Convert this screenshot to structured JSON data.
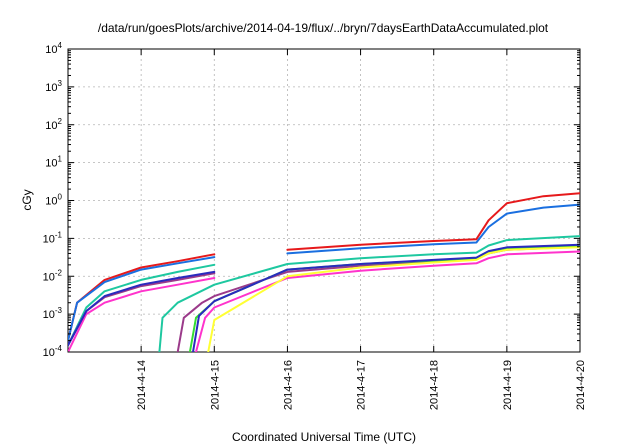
{
  "chart_data": {
    "type": "line",
    "title": "/data/run/goesPlots/archive/2014-04-19/flux/../bryn/7daysEarthDataAccumulated.plot",
    "xlabel": "Coordinated Universal Time (UTC)",
    "ylabel": "cGy",
    "x_unit": "day",
    "xlim": [
      "2014-04-13",
      "2014-04-20"
    ],
    "ylim": [
      0.0001,
      10000
    ],
    "y_scale": "log",
    "grid": true,
    "legend": "none",
    "x_tick_labels": [
      "2014-4-14",
      "2014-4-15",
      "2014-4-16",
      "2014-4-17",
      "2014-4-18",
      "2014-4-19",
      "2014-4-20"
    ],
    "y_ticks": [
      {
        "base": "10",
        "exp": "-4",
        "value": 0.0001
      },
      {
        "base": "10",
        "exp": "-3",
        "value": 0.001
      },
      {
        "base": "10",
        "exp": "-2",
        "value": 0.01
      },
      {
        "base": "10",
        "exp": "-1",
        "value": 0.1
      },
      {
        "base": "10",
        "exp": "0",
        "value": 1
      },
      {
        "base": "10",
        "exp": "1",
        "value": 10
      },
      {
        "base": "10",
        "exp": "2",
        "value": 100
      },
      {
        "base": "10",
        "exp": "3",
        "value": 1000
      },
      {
        "base": "10",
        "exp": "4",
        "value": 10000
      }
    ],
    "series": [
      {
        "color": "#e6191b",
        "segments": [
          [
            [
              "2014-04-13 00:00",
              0.0002
            ],
            [
              "2014-04-13 03:00",
              0.002
            ],
            [
              "2014-04-13 12:00",
              0.008
            ],
            [
              "2014-04-14 00:00",
              0.017
            ],
            [
              "2014-04-14 12:00",
              0.025
            ],
            [
              "2014-04-15 00:00",
              0.038
            ]
          ],
          [
            [
              "2014-04-16 00:00",
              0.05
            ],
            [
              "2014-04-17 00:00",
              0.068
            ],
            [
              "2014-04-18 00:00",
              0.085
            ],
            [
              "2014-04-18 14:00",
              0.095
            ],
            [
              "2014-04-18 18:00",
              0.3
            ],
            [
              "2014-04-19 00:00",
              0.85
            ],
            [
              "2014-04-19 12:00",
              1.3
            ],
            [
              "2014-04-20 00:00",
              1.55
            ]
          ]
        ]
      },
      {
        "color": "#1a6fe0",
        "segments": [
          [
            [
              "2014-04-13 00:00",
              0.0002
            ],
            [
              "2014-04-13 03:00",
              0.002
            ],
            [
              "2014-04-13 12:00",
              0.007
            ],
            [
              "2014-04-14 00:00",
              0.015
            ],
            [
              "2014-04-14 12:00",
              0.022
            ],
            [
              "2014-04-15 00:00",
              0.032
            ]
          ],
          [
            [
              "2014-04-16 00:00",
              0.04
            ],
            [
              "2014-04-17 00:00",
              0.055
            ],
            [
              "2014-04-18 00:00",
              0.07
            ],
            [
              "2014-04-18 14:00",
              0.078
            ],
            [
              "2014-04-18 18:00",
              0.2
            ],
            [
              "2014-04-19 00:00",
              0.45
            ],
            [
              "2014-04-19 12:00",
              0.65
            ],
            [
              "2014-04-20 00:00",
              0.78
            ]
          ]
        ]
      },
      {
        "color": "#1ec8a0",
        "segments": [
          [
            [
              "2014-04-13 00:00",
              0.00015
            ],
            [
              "2014-04-13 06:00",
              0.0015
            ],
            [
              "2014-04-13 12:00",
              0.004
            ],
            [
              "2014-04-14 00:00",
              0.008
            ],
            [
              "2014-04-14 12:00",
              0.013
            ],
            [
              "2014-04-15 00:00",
              0.02
            ]
          ],
          [
            [
              "2014-04-14 06:00",
              0.0001
            ],
            [
              "2014-04-14 07:00",
              0.0008
            ],
            [
              "2014-04-14 12:00",
              0.002
            ],
            [
              "2014-04-15 00:00",
              0.006
            ],
            [
              "2014-04-16 00:00",
              0.021
            ],
            [
              "2014-04-17 00:00",
              0.03
            ],
            [
              "2014-04-18 00:00",
              0.038
            ],
            [
              "2014-04-18 14:00",
              0.042
            ],
            [
              "2014-04-18 18:00",
              0.065
            ],
            [
              "2014-04-19 00:00",
              0.09
            ],
            [
              "2014-04-20 00:00",
              0.115
            ]
          ]
        ]
      },
      {
        "color": "#ff33cc",
        "segments": [
          [
            [
              "2014-04-13 00:00",
              0.0001
            ],
            [
              "2014-04-13 06:00",
              0.001
            ],
            [
              "2014-04-13 12:00",
              0.002
            ],
            [
              "2014-04-14 00:00",
              0.004
            ],
            [
              "2014-04-14 12:00",
              0.006
            ],
            [
              "2014-04-15 00:00",
              0.009
            ]
          ],
          [
            [
              "2014-04-14 18:00",
              0.0001
            ],
            [
              "2014-04-14 21:00",
              0.0008
            ],
            [
              "2014-04-15 00:00",
              0.0015
            ],
            [
              "2014-04-16 00:00",
              0.009
            ],
            [
              "2014-04-17 00:00",
              0.014
            ],
            [
              "2014-04-18 00:00",
              0.019
            ],
            [
              "2014-04-18 14:00",
              0.022
            ],
            [
              "2014-04-18 18:00",
              0.03
            ],
            [
              "2014-04-19 00:00",
              0.038
            ],
            [
              "2014-04-20 00:00",
              0.045
            ]
          ]
        ]
      },
      {
        "color": "#9b3a8a",
        "segments": [
          [
            [
              "2014-04-13 00:00",
              0.00015
            ],
            [
              "2014-04-13 06:00",
              0.0012
            ],
            [
              "2014-04-13 12:00",
              0.0028
            ],
            [
              "2014-04-14 00:00",
              0.0055
            ],
            [
              "2014-04-14 12:00",
              0.008
            ],
            [
              "2014-04-15 00:00",
              0.012
            ]
          ],
          [
            [
              "2014-04-14 12:00",
              0.0001
            ],
            [
              "2014-04-14 14:00",
              0.0008
            ],
            [
              "2014-04-14 20:00",
              0.002
            ],
            [
              "2014-04-15 00:00",
              0.003
            ],
            [
              "2014-04-16 00:00",
              0.013
            ],
            [
              "2014-04-17 00:00",
              0.019
            ],
            [
              "2014-04-18 00:00",
              0.025
            ],
            [
              "2014-04-18 14:00",
              0.029
            ],
            [
              "2014-04-18 18:00",
              0.04
            ],
            [
              "2014-04-19 00:00",
              0.05
            ],
            [
              "2014-04-20 00:00",
              0.06
            ]
          ]
        ]
      },
      {
        "color": "#33dd33",
        "segments": [
          [
            [
              "2014-04-14 16:00",
              0.0001
            ],
            [
              "2014-04-14 18:00",
              0.0008
            ],
            [
              "2014-04-15 00:00",
              0.0022
            ],
            [
              "2014-04-16 00:00",
              0.015
            ],
            [
              "2014-04-17 00:00",
              0.021
            ],
            [
              "2014-04-18 00:00",
              0.026
            ],
            [
              "2014-04-18 14:00",
              0.03
            ],
            [
              "2014-04-18 18:00",
              0.045
            ],
            [
              "2014-04-19 00:00",
              0.056
            ],
            [
              "2014-04-20 00:00",
              0.065
            ]
          ]
        ]
      },
      {
        "color": "#2a2abf",
        "segments": [
          [
            [
              "2014-04-13 00:00",
              0.00015
            ],
            [
              "2014-04-13 06:00",
              0.0012
            ],
            [
              "2014-04-13 12:00",
              0.003
            ],
            [
              "2014-04-14 00:00",
              0.006
            ],
            [
              "2014-04-14 12:00",
              0.009
            ],
            [
              "2014-04-15 00:00",
              0.013
            ]
          ],
          [
            [
              "2014-04-14 17:00",
              0.0001
            ],
            [
              "2014-04-14 19:00",
              0.0009
            ],
            [
              "2014-04-15 00:00",
              0.0022
            ],
            [
              "2014-04-16 00:00",
              0.015
            ],
            [
              "2014-04-17 00:00",
              0.021
            ],
            [
              "2014-04-18 00:00",
              0.027
            ],
            [
              "2014-04-18 14:00",
              0.031
            ],
            [
              "2014-04-18 18:00",
              0.046
            ],
            [
              "2014-04-19 00:00",
              0.058
            ],
            [
              "2014-04-20 00:00",
              0.068
            ]
          ]
        ]
      },
      {
        "color": "#ffff33",
        "segments": [
          [
            [
              "2014-04-14 22:00",
              0.0001
            ],
            [
              "2014-04-15 00:00",
              0.0007
            ],
            [
              "2014-04-16 00:00",
              0.01
            ],
            [
              "2014-04-17 00:00",
              0.017
            ],
            [
              "2014-04-18 00:00",
              0.023
            ],
            [
              "2014-04-18 14:00",
              0.027
            ],
            [
              "2014-04-18 18:00",
              0.04
            ],
            [
              "2014-04-19 00:00",
              0.05
            ],
            [
              "2014-04-20 00:00",
              0.058
            ]
          ]
        ]
      }
    ]
  }
}
